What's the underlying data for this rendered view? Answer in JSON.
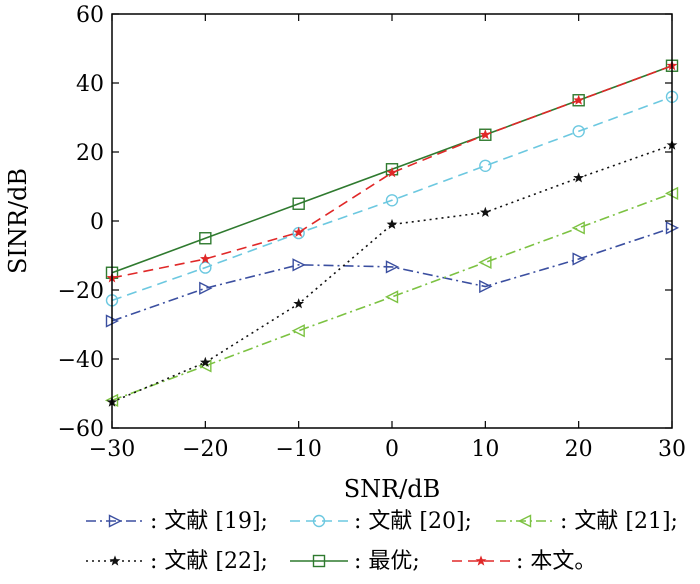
{
  "chart_data": {
    "type": "line",
    "title": "",
    "xlabel": "SNR/dB",
    "ylabel": "SINR/dB",
    "xlim": [
      -30,
      30
    ],
    "ylim": [
      -60,
      60
    ],
    "xticks": [
      -30,
      -20,
      -10,
      0,
      10,
      20,
      30
    ],
    "yticks": [
      -60,
      -40,
      -20,
      0,
      20,
      40,
      60
    ],
    "xtick_labels": [
      "−30",
      "−20",
      "−10",
      "0",
      "10",
      "20",
      "30"
    ],
    "ytick_labels": [
      "−60",
      "−40",
      "−20",
      "0",
      "20",
      "40",
      "60"
    ],
    "grid": false,
    "legend_position": "bottom",
    "series": [
      {
        "name": "文献 [19];",
        "color": "#3b4fa0",
        "dash": "dash-dot",
        "marker": "triangle-right",
        "x": [
          -30,
          -20,
          -10,
          0,
          10,
          20,
          30
        ],
        "y": [
          -29,
          -19.5,
          -12.7,
          -13.3,
          -19,
          -11,
          -2
        ]
      },
      {
        "name": "文献 [20];",
        "color": "#6cc8e0",
        "dash": "dashed",
        "marker": "circle",
        "x": [
          -30,
          -20,
          -10,
          0,
          10,
          20,
          30
        ],
        "y": [
          -23,
          -13.5,
          -3.5,
          6,
          16,
          26,
          36
        ]
      },
      {
        "name": "文献 [21];",
        "color": "#7cc242",
        "dash": "dash-dot",
        "marker": "triangle-left",
        "x": [
          -30,
          -20,
          -10,
          0,
          10,
          20,
          30
        ],
        "y": [
          -52,
          -42,
          -31.8,
          -22,
          -12,
          -2,
          8
        ]
      },
      {
        "name": "文献 [22];",
        "color": "#111111",
        "dash": "dotted",
        "marker": "star",
        "x": [
          -30,
          -20,
          -10,
          0,
          10,
          20,
          30
        ],
        "y": [
          -52.5,
          -41,
          -24,
          -1,
          2.5,
          12.5,
          22
        ]
      },
      {
        "name": "最优;",
        "color": "#2f7a2f",
        "dash": "solid",
        "marker": "square",
        "x": [
          -30,
          -20,
          -10,
          0,
          10,
          20,
          30
        ],
        "y": [
          -15,
          -5,
          5,
          15,
          25,
          35,
          45
        ]
      },
      {
        "name": "本文。",
        "color": "#e02828",
        "dash": "dashed",
        "marker": "star",
        "x": [
          -30,
          -20,
          -10,
          0,
          10,
          20,
          30
        ],
        "y": [
          -16.5,
          -11,
          -3.3,
          14,
          25,
          35,
          45
        ]
      }
    ]
  },
  "legend_separator": ":"
}
